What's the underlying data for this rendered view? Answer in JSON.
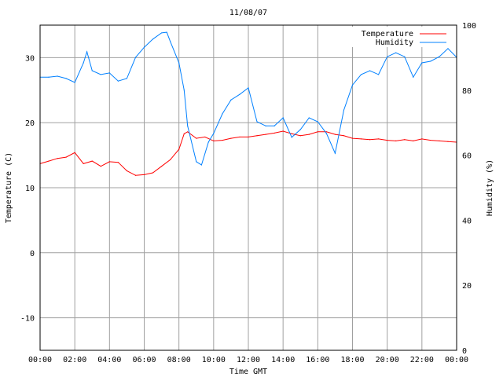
{
  "chart_data": {
    "type": "line",
    "title": "11/08/07",
    "xlabel": "Time GMT",
    "ylabel": "Temperature (C)",
    "y2label": "Humidity (%)",
    "xlim": [
      0,
      24
    ],
    "ylim": [
      -15,
      35
    ],
    "y2lim": [
      0,
      100
    ],
    "grid": true,
    "legend_position": "top-right",
    "x_ticks": [
      {
        "value": 0,
        "label": "00:00"
      },
      {
        "value": 2,
        "label": "02:00"
      },
      {
        "value": 4,
        "label": "04:00"
      },
      {
        "value": 6,
        "label": "06:00"
      },
      {
        "value": 8,
        "label": "08:00"
      },
      {
        "value": 10,
        "label": "10:00"
      },
      {
        "value": 12,
        "label": "12:00"
      },
      {
        "value": 14,
        "label": "14:00"
      },
      {
        "value": 16,
        "label": "16:00"
      },
      {
        "value": 18,
        "label": "18:00"
      },
      {
        "value": 20,
        "label": "20:00"
      },
      {
        "value": 22,
        "label": "22:00"
      },
      {
        "value": 24,
        "label": "00:00"
      }
    ],
    "y_ticks": [
      {
        "value": 30,
        "label": "30"
      },
      {
        "value": 20,
        "label": "20"
      },
      {
        "value": 10,
        "label": "10"
      },
      {
        "value": 0,
        "label": "0"
      },
      {
        "value": -10,
        "label": "-10"
      }
    ],
    "y2_ticks": [
      {
        "value": 100,
        "label": "100"
      },
      {
        "value": 80,
        "label": "80"
      },
      {
        "value": 60,
        "label": "60"
      },
      {
        "value": 40,
        "label": "40"
      },
      {
        "value": 20,
        "label": "20"
      },
      {
        "value": 0,
        "label": "0"
      }
    ],
    "series": [
      {
        "name": "Temperature",
        "axis": "left",
        "color": "#ff0000",
        "x": [
          0,
          0.5,
          1,
          1.5,
          2,
          2.5,
          3,
          3.5,
          4,
          4.5,
          5,
          5.5,
          6,
          6.5,
          7,
          7.5,
          8,
          8.3,
          8.5,
          9,
          9.5,
          10,
          10.5,
          11,
          11.5,
          12,
          12.5,
          13,
          13.5,
          14,
          14.5,
          15,
          15.5,
          16,
          16.5,
          17,
          17.5,
          18,
          18.5,
          19,
          19.5,
          20,
          20.5,
          21,
          21.5,
          22,
          22.5,
          23,
          23.5,
          24
        ],
        "y": [
          13.7,
          14.1,
          14.5,
          14.7,
          15.4,
          13.7,
          14.1,
          13.3,
          14.0,
          13.9,
          12.6,
          11.9,
          12.0,
          12.3,
          13.3,
          14.3,
          15.9,
          18.3,
          18.6,
          17.6,
          17.8,
          17.2,
          17.3,
          17.6,
          17.8,
          17.8,
          18.0,
          18.2,
          18.4,
          18.7,
          18.3,
          18.0,
          18.2,
          18.6,
          18.6,
          18.2,
          18.0,
          17.6,
          17.5,
          17.4,
          17.5,
          17.3,
          17.2,
          17.4,
          17.2,
          17.5,
          17.3,
          17.2,
          17.1,
          17.0
        ]
      },
      {
        "name": "Humidity",
        "axis": "right",
        "color": "#0080ff",
        "x": [
          0,
          0.5,
          1,
          1.5,
          2,
          2.5,
          2.7,
          3,
          3.5,
          4,
          4.5,
          5,
          5.5,
          6,
          6.5,
          7,
          7.3,
          7.5,
          8,
          8.3,
          8.5,
          9,
          9.3,
          9.7,
          10,
          10.5,
          11,
          11.5,
          12,
          12.5,
          13,
          13.5,
          14,
          14.5,
          15,
          15.5,
          16,
          16.5,
          17,
          17.5,
          18,
          18.5,
          19,
          19.5,
          20,
          20.5,
          21,
          21.5,
          22,
          22.5,
          23,
          23.5,
          24
        ],
        "y": [
          84,
          84,
          84.3,
          83.6,
          82.4,
          88.4,
          91.8,
          86,
          84.8,
          85.3,
          82.8,
          83.6,
          90.1,
          93.2,
          95.7,
          97.6,
          97.8,
          95,
          88.4,
          80,
          69,
          58,
          57,
          64,
          66.7,
          72.7,
          77,
          78.7,
          80.7,
          70.3,
          69,
          69,
          71.5,
          65.5,
          67.9,
          71.5,
          70.3,
          66.7,
          60.6,
          73.9,
          81.6,
          84.8,
          86,
          84.8,
          90.3,
          91.5,
          90.3,
          84,
          88.4,
          88.9,
          90.3,
          92.8,
          90.1
        ]
      }
    ]
  }
}
